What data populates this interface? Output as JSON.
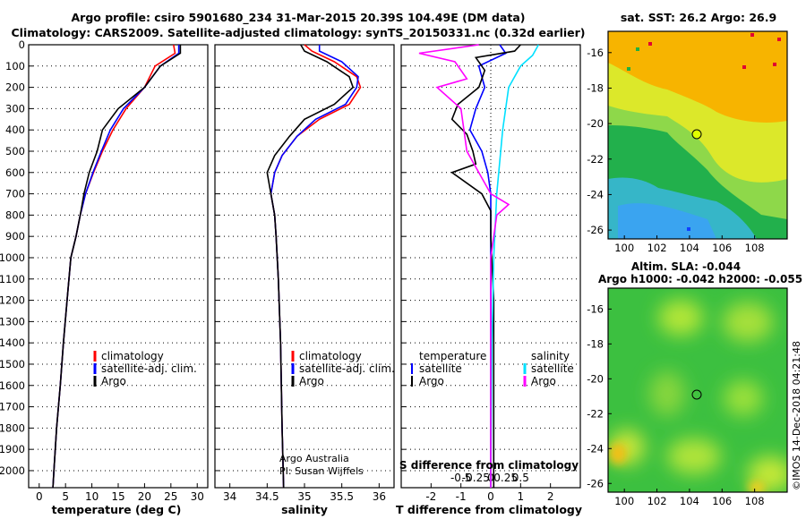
{
  "header": {
    "line1": "Argo profile: csiro 5901680_234 31-Mar-2015 20.39S 104.49E (DM data)",
    "line2": "Climatology: CARS2009. Satellite-adjusted climatology: synTS_20150331.nc (0.32d earlier)"
  },
  "colors": {
    "climatology": "#ff0000",
    "satellite": "#0000ff",
    "argo": "#000000",
    "s_satellite": "#00e0ff",
    "s_argo": "#ff00ff"
  },
  "chart_data": [
    {
      "type": "line",
      "name": "temperature-profile",
      "xlabel": "temperature (deg C)",
      "ylabel": "",
      "xlim": [
        -2,
        32
      ],
      "ylim": [
        2080,
        0
      ],
      "xticks": [
        0,
        5,
        10,
        15,
        20,
        25,
        30
      ],
      "yticks": [
        0,
        100,
        200,
        300,
        400,
        500,
        600,
        700,
        800,
        900,
        1000,
        1100,
        1200,
        1300,
        1400,
        1500,
        1600,
        1700,
        1800,
        1900,
        2000
      ],
      "legend": [
        {
          "label": "climatology",
          "color": "#ff0000"
        },
        {
          "label": "satellite-adj. clim.",
          "color": "#0000ff"
        },
        {
          "label": "Argo",
          "color": "#000000"
        }
      ],
      "series": [
        {
          "name": "climatology",
          "color": "#ff0000",
          "points": [
            [
              25.5,
              0
            ],
            [
              25.8,
              40
            ],
            [
              22,
              100
            ],
            [
              20,
              200
            ],
            [
              16.5,
              300
            ],
            [
              14,
              400
            ],
            [
              12,
              500
            ],
            [
              10.3,
              600
            ],
            [
              8.8,
              700
            ],
            [
              7.8,
              800
            ],
            [
              7,
              900
            ],
            [
              6,
              1000
            ],
            [
              5.3,
              1200
            ],
            [
              4.6,
              1400
            ],
            [
              4,
              1600
            ],
            [
              3.3,
              1800
            ],
            [
              2.8,
              2000
            ],
            [
              2.6,
              2080
            ]
          ]
        },
        {
          "name": "satellite",
          "color": "#0000ff",
          "points": [
            [
              26.5,
              0
            ],
            [
              26.5,
              40
            ],
            [
              23,
              100
            ],
            [
              20,
              200
            ],
            [
              16,
              300
            ],
            [
              13.5,
              400
            ],
            [
              11.8,
              500
            ],
            [
              10.2,
              600
            ],
            [
              8.8,
              700
            ],
            [
              7.8,
              800
            ],
            [
              7,
              900
            ],
            [
              6,
              1000
            ],
            [
              5.3,
              1200
            ],
            [
              4.6,
              1400
            ],
            [
              4,
              1600
            ],
            [
              3.3,
              1800
            ],
            [
              2.8,
              2000
            ],
            [
              2.6,
              2080
            ]
          ]
        },
        {
          "name": "Argo",
          "color": "#000000",
          "points": [
            [
              26.8,
              0
            ],
            [
              26.8,
              40
            ],
            [
              23,
              100
            ],
            [
              20,
              200
            ],
            [
              15,
              300
            ],
            [
              12,
              400
            ],
            [
              11,
              500
            ],
            [
              9.5,
              600
            ],
            [
              8.5,
              700
            ],
            [
              7.8,
              800
            ],
            [
              7,
              900
            ],
            [
              6,
              1000
            ],
            [
              5.3,
              1200
            ],
            [
              4.6,
              1400
            ],
            [
              4,
              1600
            ],
            [
              3.3,
              1800
            ],
            [
              2.8,
              2000
            ],
            [
              2.6,
              2080
            ]
          ]
        }
      ]
    },
    {
      "type": "line",
      "name": "salinity-profile",
      "xlabel": "salinity",
      "xlim": [
        33.8,
        36.2
      ],
      "ylim": [
        2080,
        0
      ],
      "xticks": [
        34,
        34.5,
        35,
        35.5,
        36
      ],
      "legend": [
        {
          "label": "climatology",
          "color": "#ff0000"
        },
        {
          "label": "satellite-adj. clim.",
          "color": "#0000ff"
        },
        {
          "label": "Argo",
          "color": "#000000"
        }
      ],
      "annotation": [
        "Argo Australia",
        "PI: Susan Wijffels"
      ],
      "series": [
        {
          "name": "climatology",
          "color": "#ff0000",
          "points": [
            [
              35.0,
              0
            ],
            [
              35.1,
              30
            ],
            [
              35.4,
              80
            ],
            [
              35.7,
              150
            ],
            [
              35.75,
              200
            ],
            [
              35.6,
              280
            ],
            [
              35.2,
              350
            ],
            [
              34.9,
              430
            ],
            [
              34.7,
              520
            ],
            [
              34.6,
              600
            ],
            [
              34.55,
              700
            ],
            [
              34.6,
              800
            ],
            [
              34.62,
              900
            ],
            [
              34.65,
              1100
            ],
            [
              34.68,
              1400
            ],
            [
              34.7,
              1800
            ],
            [
              34.72,
              2080
            ]
          ]
        },
        {
          "name": "satellite",
          "color": "#0000ff",
          "points": [
            [
              35.2,
              0
            ],
            [
              35.2,
              30
            ],
            [
              35.5,
              80
            ],
            [
              35.72,
              150
            ],
            [
              35.7,
              200
            ],
            [
              35.55,
              280
            ],
            [
              35.15,
              350
            ],
            [
              34.9,
              430
            ],
            [
              34.7,
              520
            ],
            [
              34.6,
              600
            ],
            [
              34.55,
              700
            ],
            [
              34.6,
              800
            ],
            [
              34.62,
              900
            ],
            [
              34.65,
              1100
            ],
            [
              34.68,
              1400
            ],
            [
              34.7,
              1800
            ],
            [
              34.72,
              2080
            ]
          ]
        },
        {
          "name": "Argo",
          "color": "#000000",
          "points": [
            [
              34.95,
              0
            ],
            [
              35.0,
              30
            ],
            [
              35.3,
              80
            ],
            [
              35.6,
              150
            ],
            [
              35.65,
              200
            ],
            [
              35.4,
              280
            ],
            [
              35.0,
              350
            ],
            [
              34.8,
              430
            ],
            [
              34.6,
              520
            ],
            [
              34.5,
              600
            ],
            [
              34.55,
              700
            ],
            [
              34.6,
              800
            ],
            [
              34.62,
              900
            ],
            [
              34.65,
              1100
            ],
            [
              34.68,
              1400
            ],
            [
              34.7,
              1800
            ],
            [
              34.72,
              2080
            ]
          ]
        }
      ]
    },
    {
      "type": "line",
      "name": "difference-profile",
      "xlabel": "T difference from climatology",
      "xlabel2": "S difference from climatology",
      "xlim": [
        -3,
        3
      ],
      "ylim": [
        2080,
        0
      ],
      "xticks": [
        -2,
        -1,
        0,
        1,
        2
      ],
      "xticklabels": [
        "-2",
        "-1",
        "0",
        "1",
        "2"
      ],
      "sticks": [
        -0.5,
        -0.25,
        0,
        0.25,
        0.5
      ],
      "sticklabels": [
        "-0.5",
        "-0.25",
        "0",
        "0.25",
        "0.5"
      ],
      "legend_t": {
        "title": "temperature",
        "items": [
          {
            "label": "satellite",
            "color": "#0000ff"
          },
          {
            "label": "Argo",
            "color": "#000000"
          }
        ]
      },
      "legend_s": {
        "title": "salinity",
        "items": [
          {
            "label": "satellite",
            "color": "#00e0ff"
          },
          {
            "label": "Argo",
            "color": "#ff00ff"
          }
        ]
      },
      "series": [
        {
          "name": "T satellite",
          "color": "#0000ff",
          "points": [
            [
              0.3,
              0
            ],
            [
              0.5,
              40
            ],
            [
              -0.4,
              100
            ],
            [
              -0.2,
              200
            ],
            [
              -0.5,
              300
            ],
            [
              -0.7,
              400
            ],
            [
              -0.3,
              500
            ],
            [
              -0.1,
              600
            ],
            [
              0,
              700
            ],
            [
              0,
              900
            ],
            [
              0,
              1200
            ],
            [
              0,
              1600
            ],
            [
              0,
              2080
            ]
          ]
        },
        {
          "name": "T Argo",
          "color": "#000000",
          "points": [
            [
              1.0,
              0
            ],
            [
              0.8,
              30
            ],
            [
              -0.5,
              60
            ],
            [
              -0.2,
              120
            ],
            [
              -0.4,
              200
            ],
            [
              -1.1,
              280
            ],
            [
              -1.3,
              350
            ],
            [
              -0.8,
              420
            ],
            [
              -0.6,
              500
            ],
            [
              -0.5,
              560
            ],
            [
              -1.3,
              600
            ],
            [
              -0.3,
              700
            ],
            [
              0,
              780
            ],
            [
              0,
              900
            ],
            [
              0.1,
              1200
            ],
            [
              0.1,
              1600
            ],
            [
              0.1,
              1800
            ],
            [
              0.1,
              2080
            ]
          ]
        },
        {
          "name": "S satellite",
          "color": "#00e0ff",
          "points": [
            [
              0.8,
              0
            ],
            [
              0.7,
              50
            ],
            [
              0.5,
              100
            ],
            [
              0.3,
              200
            ],
            [
              0.2,
              400
            ],
            [
              0.1,
              700
            ],
            [
              0.05,
              1000
            ],
            [
              0.02,
              1400
            ],
            [
              0,
              2080
            ]
          ]
        },
        {
          "name": "S Argo",
          "color": "#ff00ff",
          "points": [
            [
              -0.2,
              0
            ],
            [
              -1.2,
              40
            ],
            [
              -0.6,
              80
            ],
            [
              -0.4,
              160
            ],
            [
              -0.9,
              200
            ],
            [
              -0.5,
              300
            ],
            [
              -0.4,
              500
            ],
            [
              0,
              700
            ],
            [
              0.3,
              750
            ],
            [
              0.1,
              800
            ],
            [
              0,
              1000
            ],
            [
              0,
              1400
            ],
            [
              0,
              2080
            ]
          ]
        }
      ]
    }
  ],
  "maps": {
    "top": {
      "title": "sat. SST: 26.2 Argo: 26.9",
      "xticks": [
        "100",
        "102",
        "104",
        "106",
        "108"
      ],
      "yticks": [
        "-16",
        "-18",
        "-20",
        "-22",
        "-24",
        "-26"
      ],
      "marker_label": "Argo float position"
    },
    "bottom": {
      "title1": "Altim. SLA: -0.044",
      "title2": "Argo h1000: -0.042 h2000: -0.055",
      "xticks": [
        "100",
        "102",
        "104",
        "106",
        "108"
      ],
      "yticks": [
        "-16",
        "-18",
        "-20",
        "-22",
        "-24",
        "-26"
      ]
    }
  },
  "footer": {
    "credit": "©IMOS 14-Dec-2018 04:21:48"
  }
}
